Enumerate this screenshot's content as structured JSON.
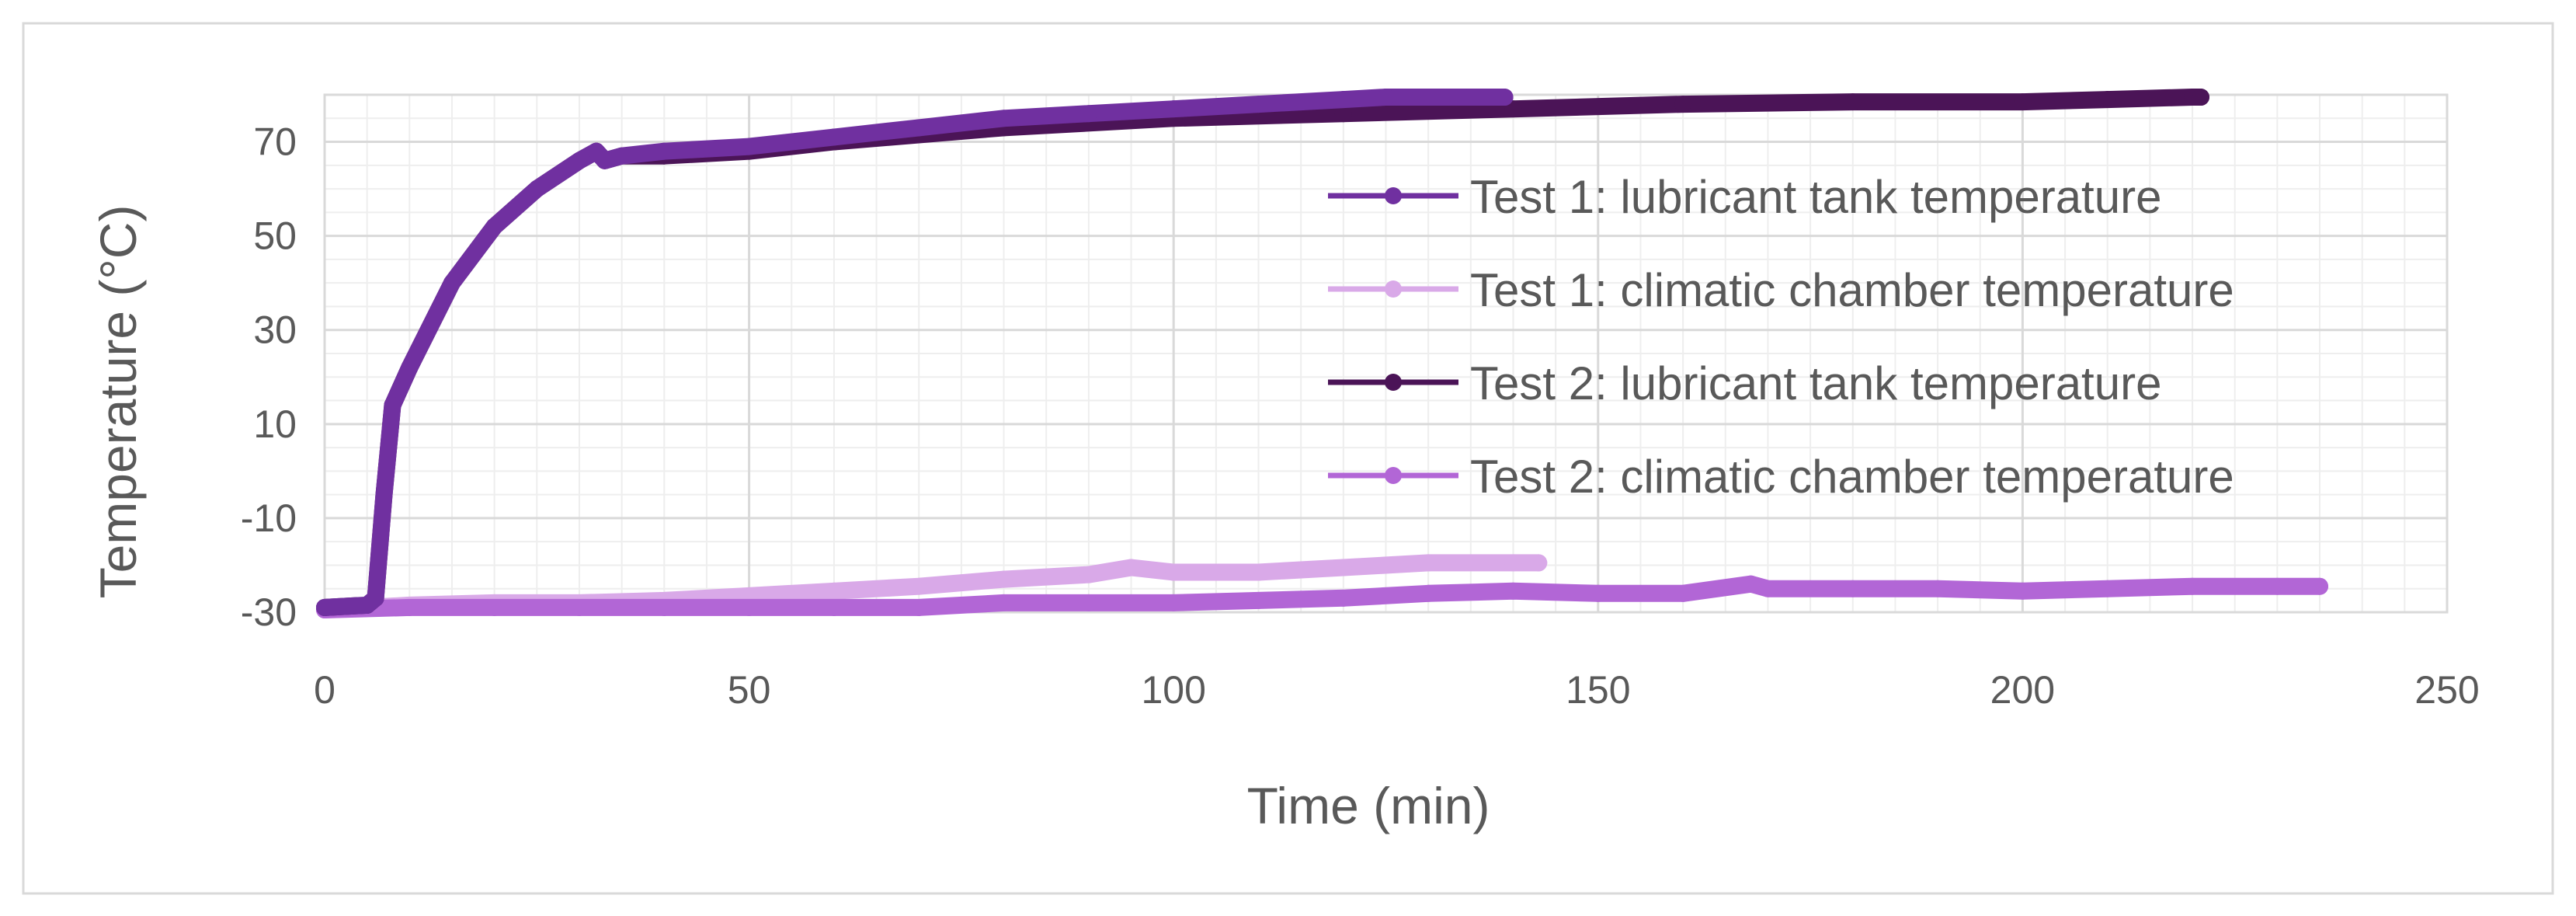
{
  "chart_data": {
    "type": "line",
    "title": "",
    "xlabel": "Time (min)",
    "ylabel": "Temperature (°C)",
    "xlim": [
      0,
      250
    ],
    "ylim": [
      -30,
      80
    ],
    "x_ticks": [
      0,
      50,
      100,
      150,
      200,
      250
    ],
    "y_ticks": [
      -30,
      -10,
      10,
      30,
      50,
      70
    ],
    "grid": true,
    "legend_position": "right-inside",
    "series": [
      {
        "name": "Test 1: lubricant tank temperature",
        "color": "#7030A0",
        "x": [
          0,
          5,
          6,
          7,
          8,
          10,
          15,
          20,
          25,
          30,
          32,
          33,
          35,
          40,
          50,
          60,
          70,
          80,
          90,
          100,
          110,
          120,
          125,
          130,
          135,
          139
        ],
        "y": [
          -29,
          -28.5,
          -27,
          -5,
          14,
          22,
          40,
          52,
          60,
          66,
          68,
          66,
          67,
          68,
          69,
          71,
          73,
          75,
          76,
          77,
          78,
          79,
          79.5,
          79.5,
          79.5,
          79.5
        ]
      },
      {
        "name": "Test 1: climatic chamber temperature",
        "color": "#D9A9E8",
        "x": [
          0,
          10,
          20,
          30,
          40,
          50,
          60,
          70,
          80,
          90,
          95,
          100,
          110,
          120,
          130,
          140,
          143
        ],
        "y": [
          -29.5,
          -28.5,
          -28,
          -28,
          -27.5,
          -26.5,
          -25.5,
          -24.5,
          -23,
          -22,
          -20.5,
          -21.5,
          -21.5,
          -20.5,
          -19.5,
          -19.5,
          -19.5
        ]
      },
      {
        "name": "Test 2: lubricant tank temperature",
        "color": "#4B1457",
        "x": [
          0,
          5,
          6,
          7,
          8,
          10,
          15,
          20,
          25,
          30,
          32,
          33,
          35,
          40,
          50,
          60,
          80,
          100,
          120,
          140,
          160,
          180,
          200,
          210,
          220,
          221
        ],
        "y": [
          -29,
          -28.5,
          -27,
          -5,
          14,
          22,
          40,
          52,
          60,
          66,
          68,
          66,
          67,
          67,
          68,
          70,
          73,
          75,
          76,
          77,
          78,
          78.5,
          78.5,
          79,
          79.5,
          79.5
        ]
      },
      {
        "name": "Test 2: climatic chamber temperature",
        "color": "#B266D6",
        "x": [
          0,
          10,
          20,
          30,
          40,
          50,
          60,
          70,
          80,
          90,
          100,
          110,
          120,
          130,
          140,
          150,
          160,
          168,
          170,
          180,
          190,
          200,
          210,
          220,
          230,
          235
        ],
        "y": [
          -29.5,
          -29,
          -29,
          -29,
          -29,
          -29,
          -29,
          -29,
          -28,
          -28,
          -28,
          -27.5,
          -27,
          -26,
          -25.5,
          -26,
          -26,
          -24,
          -25,
          -25,
          -25,
          -25.5,
          -25,
          -24.5,
          -24.5,
          -24.5
        ]
      }
    ]
  }
}
